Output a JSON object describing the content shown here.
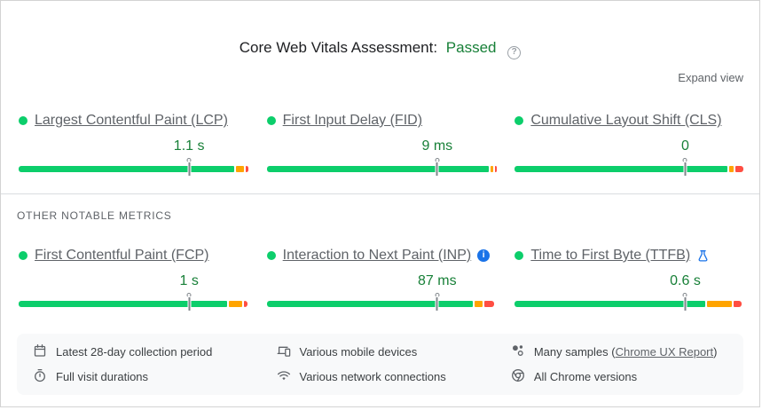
{
  "header": {
    "title": "Core Web Vitals Assessment:",
    "status": "Passed",
    "status_color": "#188038",
    "help_glyph": "?",
    "expand_view": "Expand view"
  },
  "colors": {
    "good": "#0cce6b",
    "needs_improvement": "#ffa400",
    "poor": "#ff4e42",
    "value_text": "#188038"
  },
  "core_metrics": [
    {
      "label": "Largest Contentful Paint (LCP)",
      "value": "1.1 s",
      "bar": {
        "good_pct": 93.5,
        "needs_improvement_pct": 3.5,
        "poor_pct": 1.4,
        "marker_pct": 74
      }
    },
    {
      "label": "First Input Delay (FID)",
      "value": "9 ms",
      "bar": {
        "good_pct": 96.5,
        "needs_improvement_pct": 1.2,
        "poor_pct": 0.8,
        "marker_pct": 74
      }
    },
    {
      "label": "Cumulative Layout Shift (CLS)",
      "value": "0",
      "bar": {
        "good_pct": 92.3,
        "needs_improvement_pct": 2.0,
        "poor_pct": 3.4,
        "marker_pct": 74
      }
    }
  ],
  "section": {
    "title": "OTHER NOTABLE METRICS"
  },
  "other_metrics": [
    {
      "label": "First Contentful Paint (FCP)",
      "value": "1 s",
      "bar": {
        "good_pct": 90.6,
        "needs_improvement_pct": 5.5,
        "poor_pct": 1.7,
        "marker_pct": 74
      }
    },
    {
      "label": "Interaction to Next Paint (INP)",
      "value": "87 ms",
      "info_glyph": "i",
      "bar": {
        "good_pct": 89.5,
        "needs_improvement_pct": 3.6,
        "poor_pct": 4.0,
        "marker_pct": 74
      }
    },
    {
      "label": "Time to First Byte (TTFB)",
      "value": "0.6 s",
      "bar": {
        "good_pct": 82.5,
        "needs_improvement_pct": 10.9,
        "poor_pct": 3.6,
        "marker_pct": 74
      }
    }
  ],
  "footer": {
    "items": [
      {
        "icon": "calendar-icon",
        "label": "Latest 28-day collection period"
      },
      {
        "icon": "devices-icon",
        "label": "Various mobile devices"
      },
      {
        "icon": "samples-icon",
        "prefix": "Many samples (",
        "link_label": "Chrome UX Report",
        "suffix": ")"
      },
      {
        "icon": "stopwatch-icon",
        "label": "Full visit durations"
      },
      {
        "icon": "network-icon",
        "label": "Various network connections"
      },
      {
        "icon": "chrome-icon",
        "label": "All Chrome versions"
      }
    ]
  }
}
